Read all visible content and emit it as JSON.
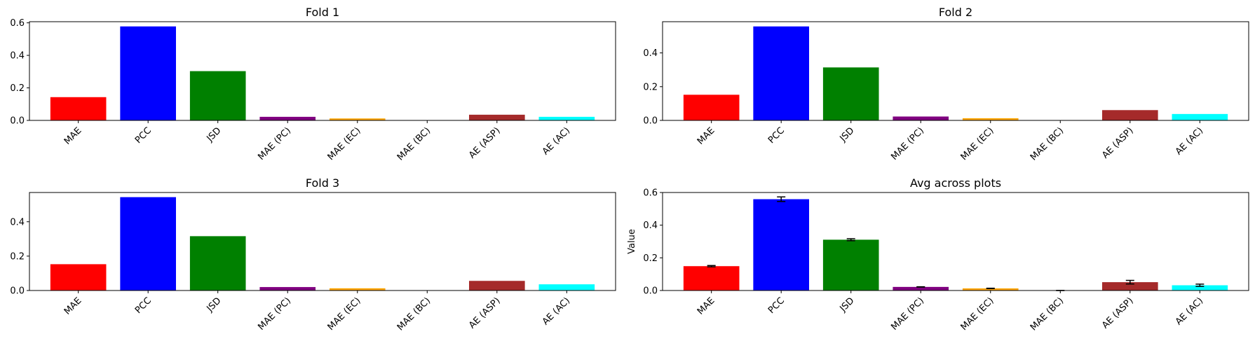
{
  "chart_data": [
    {
      "type": "bar",
      "title": "Fold 1",
      "xlabel": "",
      "ylabel": "",
      "categories": [
        "MAE",
        "PCC",
        "JSD",
        "MAE (PC)",
        "MAE (EC)",
        "MAE (BC)",
        "AE (ASP)",
        "AE (AC)"
      ],
      "values": [
        0.143,
        0.578,
        0.303,
        0.022,
        0.012,
        0.0,
        0.035,
        0.022
      ],
      "colors": [
        "#ff0000",
        "#0000ff",
        "#008000",
        "#800080",
        "#ffa500",
        "#a52a2a",
        "#a52a2a",
        "#00ffff"
      ],
      "ylim": [
        0,
        0.607
      ],
      "yticks": [
        "0.0",
        "0.2",
        "0.4",
        "0.6"
      ],
      "ytick_values": [
        0,
        0.2,
        0.4,
        0.6
      ],
      "grid": false
    },
    {
      "type": "bar",
      "title": "Fold 2",
      "xlabel": "",
      "ylabel": "",
      "categories": [
        "MAE",
        "PCC",
        "JSD",
        "MAE (PC)",
        "MAE (EC)",
        "MAE (BC)",
        "AE (ASP)",
        "AE (AC)"
      ],
      "values": [
        0.152,
        0.557,
        0.314,
        0.023,
        0.013,
        0.0,
        0.061,
        0.038
      ],
      "colors": [
        "#ff0000",
        "#0000ff",
        "#008000",
        "#800080",
        "#ffa500",
        "#a52a2a",
        "#a52a2a",
        "#00ffff"
      ],
      "ylim": [
        0,
        0.585
      ],
      "yticks": [
        "0.0",
        "0.2",
        "0.4"
      ],
      "ytick_values": [
        0,
        0.2,
        0.4
      ],
      "grid": false
    },
    {
      "type": "bar",
      "title": "Fold 3",
      "xlabel": "",
      "ylabel": "",
      "categories": [
        "MAE",
        "PCC",
        "JSD",
        "MAE (PC)",
        "MAE (EC)",
        "MAE (BC)",
        "AE (ASP)",
        "AE (AC)"
      ],
      "values": [
        0.153,
        0.543,
        0.316,
        0.02,
        0.013,
        0.0,
        0.056,
        0.036
      ],
      "colors": [
        "#ff0000",
        "#0000ff",
        "#008000",
        "#800080",
        "#ffa500",
        "#a52a2a",
        "#a52a2a",
        "#00ffff"
      ],
      "ylim": [
        0,
        0.57
      ],
      "yticks": [
        "0.0",
        "0.2",
        "0.4"
      ],
      "ytick_values": [
        0,
        0.2,
        0.4
      ],
      "grid": false
    },
    {
      "type": "bar",
      "title": "Avg across plots",
      "xlabel": "",
      "ylabel": "Value",
      "categories": [
        "MAE",
        "PCC",
        "JSD",
        "MAE (PC)",
        "MAE (EC)",
        "MAE (BC)",
        "AE (ASP)",
        "AE (AC)"
      ],
      "values": [
        0.149,
        0.559,
        0.311,
        0.022,
        0.013,
        0.0,
        0.051,
        0.032
      ],
      "errors": [
        0.004,
        0.014,
        0.006,
        0.001,
        0.001,
        0.0,
        0.011,
        0.007
      ],
      "colors": [
        "#ff0000",
        "#0000ff",
        "#008000",
        "#800080",
        "#ffa500",
        "#a52a2a",
        "#a52a2a",
        "#00ffff"
      ],
      "ylim": [
        0,
        0.6
      ],
      "yticks": [
        "0.0",
        "0.2",
        "0.4",
        "0.6"
      ],
      "ytick_values": [
        0,
        0.2,
        0.4,
        0.6
      ],
      "grid": false
    }
  ]
}
